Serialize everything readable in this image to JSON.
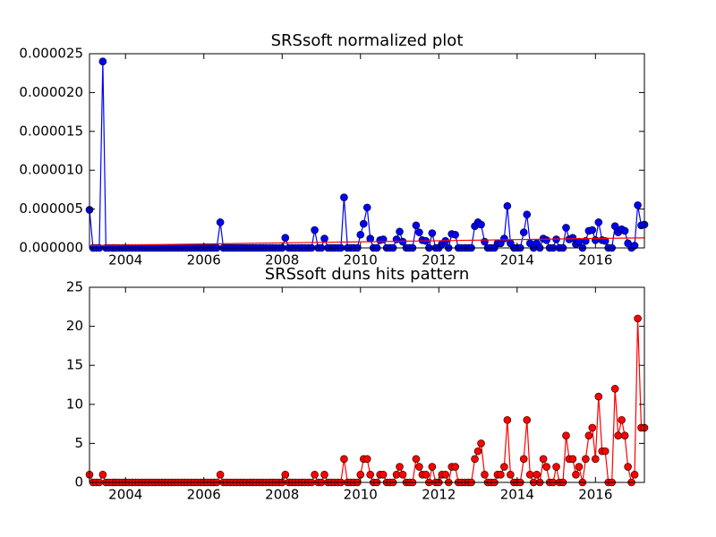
{
  "chart_data": [
    {
      "type": "line",
      "title": "SRSsoft normalized plot",
      "x": [
        2003.08,
        2003.17,
        2003.25,
        2003.33,
        2003.42,
        2003.5,
        2003.58,
        2003.67,
        2003.75,
        2003.83,
        2003.92,
        2004,
        2004.08,
        2004.17,
        2004.25,
        2004.33,
        2004.42,
        2004.5,
        2004.58,
        2004.67,
        2004.75,
        2004.83,
        2004.92,
        2005,
        2005.08,
        2005.17,
        2005.25,
        2005.33,
        2005.42,
        2005.5,
        2005.58,
        2005.67,
        2005.75,
        2005.83,
        2005.92,
        2006,
        2006.08,
        2006.17,
        2006.25,
        2006.33,
        2006.42,
        2006.5,
        2006.58,
        2006.67,
        2006.75,
        2006.83,
        2006.92,
        2007,
        2007.08,
        2007.17,
        2007.25,
        2007.33,
        2007.42,
        2007.5,
        2007.58,
        2007.67,
        2007.75,
        2007.83,
        2007.92,
        2008,
        2008.08,
        2008.17,
        2008.25,
        2008.33,
        2008.42,
        2008.5,
        2008.58,
        2008.67,
        2008.75,
        2008.83,
        2008.92,
        2009,
        2009.08,
        2009.17,
        2009.25,
        2009.33,
        2009.42,
        2009.5,
        2009.58,
        2009.67,
        2009.75,
        2009.83,
        2009.92,
        2010,
        2010.08,
        2010.17,
        2010.25,
        2010.33,
        2010.42,
        2010.5,
        2010.58,
        2010.67,
        2010.75,
        2010.83,
        2010.92,
        2011,
        2011.08,
        2011.17,
        2011.25,
        2011.33,
        2011.42,
        2011.5,
        2011.58,
        2011.67,
        2011.75,
        2011.83,
        2011.92,
        2012,
        2012.08,
        2012.17,
        2012.25,
        2012.33,
        2012.42,
        2012.5,
        2012.58,
        2012.67,
        2012.75,
        2012.83,
        2012.92,
        2013,
        2013.08,
        2013.17,
        2013.25,
        2013.33,
        2013.42,
        2013.5,
        2013.58,
        2013.67,
        2013.75,
        2013.83,
        2013.92,
        2014,
        2014.08,
        2014.17,
        2014.25,
        2014.33,
        2014.42,
        2014.5,
        2014.58,
        2014.67,
        2014.75,
        2014.83,
        2014.92,
        2015,
        2015.08,
        2015.17,
        2015.25,
        2015.33,
        2015.42,
        2015.5,
        2015.58,
        2015.67,
        2015.75,
        2015.83,
        2015.92,
        2016,
        2016.08,
        2016.17,
        2016.25,
        2016.33,
        2016.42,
        2016.5,
        2016.58,
        2016.67,
        2016.75,
        2016.83,
        2016.92,
        2017,
        2017.08,
        2017.17,
        2017.25
      ],
      "series": [
        {
          "color": "#0000ff",
          "marker": true,
          "values": [
            4.9e-06,
            0,
            0,
            0,
            2.4e-05,
            0,
            0,
            0,
            0,
            0,
            0,
            0,
            0,
            0,
            0,
            0,
            0,
            0,
            0,
            0,
            0,
            0,
            0,
            0,
            0,
            0,
            0,
            0,
            0,
            0,
            0,
            0,
            0,
            0,
            0,
            0,
            0,
            0,
            0,
            0,
            3.3e-06,
            0,
            0,
            0,
            0,
            0,
            0,
            0,
            0,
            0,
            0,
            0,
            0,
            0,
            0,
            0,
            0,
            0,
            0,
            0,
            1.3e-06,
            0,
            0,
            0,
            0,
            0,
            0,
            0,
            0,
            2.3e-06,
            0,
            0,
            1.2e-06,
            0,
            0,
            0,
            0,
            0,
            6.5e-06,
            0,
            0,
            0,
            0,
            1.7e-06,
            3.1e-06,
            5.2e-06,
            1.2e-06,
            0,
            0,
            1e-06,
            1.1e-06,
            0,
            0,
            0,
            1.1e-06,
            2.1e-06,
            8e-07,
            0,
            0,
            0,
            2.9e-06,
            2e-06,
            1e-06,
            9e-07,
            0,
            1.9e-06,
            0,
            0,
            5e-07,
            9e-07,
            0,
            1.8e-06,
            1.7e-06,
            0,
            0,
            0,
            0,
            0,
            2.8e-06,
            3.3e-06,
            3e-06,
            8e-07,
            0,
            0,
            0,
            6e-07,
            6e-07,
            1.2e-06,
            5.4e-06,
            6e-07,
            0,
            0,
            0,
            2e-06,
            4.3e-06,
            6e-07,
            0,
            6e-07,
            0,
            1.2e-06,
            1e-06,
            0,
            0,
            1.1e-06,
            0,
            0,
            2.6e-06,
            1.1e-06,
            1.3e-06,
            5e-07,
            8e-07,
            0,
            9e-07,
            2.2e-06,
            2.3e-06,
            1e-06,
            3.3e-06,
            1e-06,
            9e-07,
            0,
            0,
            2.8e-06,
            2e-06,
            2.4e-06,
            2.2e-06,
            6e-07,
            0,
            3e-07,
            5.5e-06,
            2.9e-06,
            3e-06
          ]
        },
        {
          "color": "#ff0000",
          "marker": false,
          "x": [
            2003.08,
            2017.25
          ],
          "values": [
            3e-07,
            1.3e-06
          ]
        }
      ],
      "xlim": [
        2003.08,
        2017.25
      ],
      "xticks": [
        2004,
        2006,
        2008,
        2010,
        2012,
        2014,
        2016
      ],
      "ylim": [
        0,
        2.5e-05
      ],
      "yticks": [
        {
          "value": 0,
          "label": "0.000000"
        },
        {
          "value": 5e-06,
          "label": "0.000005"
        },
        {
          "value": 1e-05,
          "label": "0.000010"
        },
        {
          "value": 1.5e-05,
          "label": "0.000015"
        },
        {
          "value": 2e-05,
          "label": "0.000020"
        },
        {
          "value": 2.5e-05,
          "label": "0.000025"
        }
      ]
    },
    {
      "type": "line",
      "title": "SRSsoft duns hits pattern",
      "x": [
        2003.08,
        2003.17,
        2003.25,
        2003.33,
        2003.42,
        2003.5,
        2003.58,
        2003.67,
        2003.75,
        2003.83,
        2003.92,
        2004,
        2004.08,
        2004.17,
        2004.25,
        2004.33,
        2004.42,
        2004.5,
        2004.58,
        2004.67,
        2004.75,
        2004.83,
        2004.92,
        2005,
        2005.08,
        2005.17,
        2005.25,
        2005.33,
        2005.42,
        2005.5,
        2005.58,
        2005.67,
        2005.75,
        2005.83,
        2005.92,
        2006,
        2006.08,
        2006.17,
        2006.25,
        2006.33,
        2006.42,
        2006.5,
        2006.58,
        2006.67,
        2006.75,
        2006.83,
        2006.92,
        2007,
        2007.08,
        2007.17,
        2007.25,
        2007.33,
        2007.42,
        2007.5,
        2007.58,
        2007.67,
        2007.75,
        2007.83,
        2007.92,
        2008,
        2008.08,
        2008.17,
        2008.25,
        2008.33,
        2008.42,
        2008.5,
        2008.58,
        2008.67,
        2008.75,
        2008.83,
        2008.92,
        2009,
        2009.08,
        2009.17,
        2009.25,
        2009.33,
        2009.42,
        2009.5,
        2009.58,
        2009.67,
        2009.75,
        2009.83,
        2009.92,
        2010,
        2010.08,
        2010.17,
        2010.25,
        2010.33,
        2010.42,
        2010.5,
        2010.58,
        2010.67,
        2010.75,
        2010.83,
        2010.92,
        2011,
        2011.08,
        2011.17,
        2011.25,
        2011.33,
        2011.42,
        2011.5,
        2011.58,
        2011.67,
        2011.75,
        2011.83,
        2011.92,
        2012,
        2012.08,
        2012.17,
        2012.25,
        2012.33,
        2012.42,
        2012.5,
        2012.58,
        2012.67,
        2012.75,
        2012.83,
        2012.92,
        2013,
        2013.08,
        2013.17,
        2013.25,
        2013.33,
        2013.42,
        2013.5,
        2013.58,
        2013.67,
        2013.75,
        2013.83,
        2013.92,
        2014,
        2014.08,
        2014.17,
        2014.25,
        2014.33,
        2014.42,
        2014.5,
        2014.58,
        2014.67,
        2014.75,
        2014.83,
        2014.92,
        2015,
        2015.08,
        2015.17,
        2015.25,
        2015.33,
        2015.42,
        2015.5,
        2015.58,
        2015.67,
        2015.75,
        2015.83,
        2015.92,
        2016,
        2016.08,
        2016.17,
        2016.25,
        2016.33,
        2016.42,
        2016.5,
        2016.58,
        2016.67,
        2016.75,
        2016.83,
        2016.92,
        2017,
        2017.08,
        2017.17,
        2017.25
      ],
      "series": [
        {
          "color": "#ff0000",
          "marker": true,
          "values": [
            1,
            0,
            0,
            0,
            1,
            0,
            0,
            0,
            0,
            0,
            0,
            0,
            0,
            0,
            0,
            0,
            0,
            0,
            0,
            0,
            0,
            0,
            0,
            0,
            0,
            0,
            0,
            0,
            0,
            0,
            0,
            0,
            0,
            0,
            0,
            0,
            0,
            0,
            0,
            0,
            1,
            0,
            0,
            0,
            0,
            0,
            0,
            0,
            0,
            0,
            0,
            0,
            0,
            0,
            0,
            0,
            0,
            0,
            0,
            0,
            1,
            0,
            0,
            0,
            0,
            0,
            0,
            0,
            0,
            1,
            0,
            0,
            1,
            0,
            0,
            0,
            0,
            0,
            3,
            0,
            0,
            0,
            0,
            1,
            3,
            3,
            1,
            0,
            0,
            1,
            1,
            0,
            0,
            0,
            1,
            2,
            1,
            0,
            0,
            0,
            3,
            2,
            1,
            1,
            0,
            2,
            0,
            0,
            1,
            1,
            0,
            2,
            2,
            0,
            0,
            0,
            0,
            0,
            3,
            4,
            5,
            1,
            0,
            0,
            0,
            1,
            1,
            2,
            8,
            1,
            0,
            0,
            0,
            3,
            8,
            1,
            0,
            1,
            0,
            3,
            2,
            0,
            0,
            2,
            0,
            0,
            6,
            3,
            3,
            1,
            2,
            0,
            3,
            6,
            7,
            3,
            11,
            4,
            4,
            0,
            0,
            12,
            6,
            8,
            6,
            2,
            0,
            1,
            21,
            7,
            7
          ]
        }
      ],
      "xlim": [
        2003.08,
        2017.25
      ],
      "xticks": [
        2004,
        2006,
        2008,
        2010,
        2012,
        2014,
        2016
      ],
      "ylim": [
        0,
        25
      ],
      "yticks": [
        0,
        5,
        10,
        15,
        20,
        25
      ]
    }
  ]
}
